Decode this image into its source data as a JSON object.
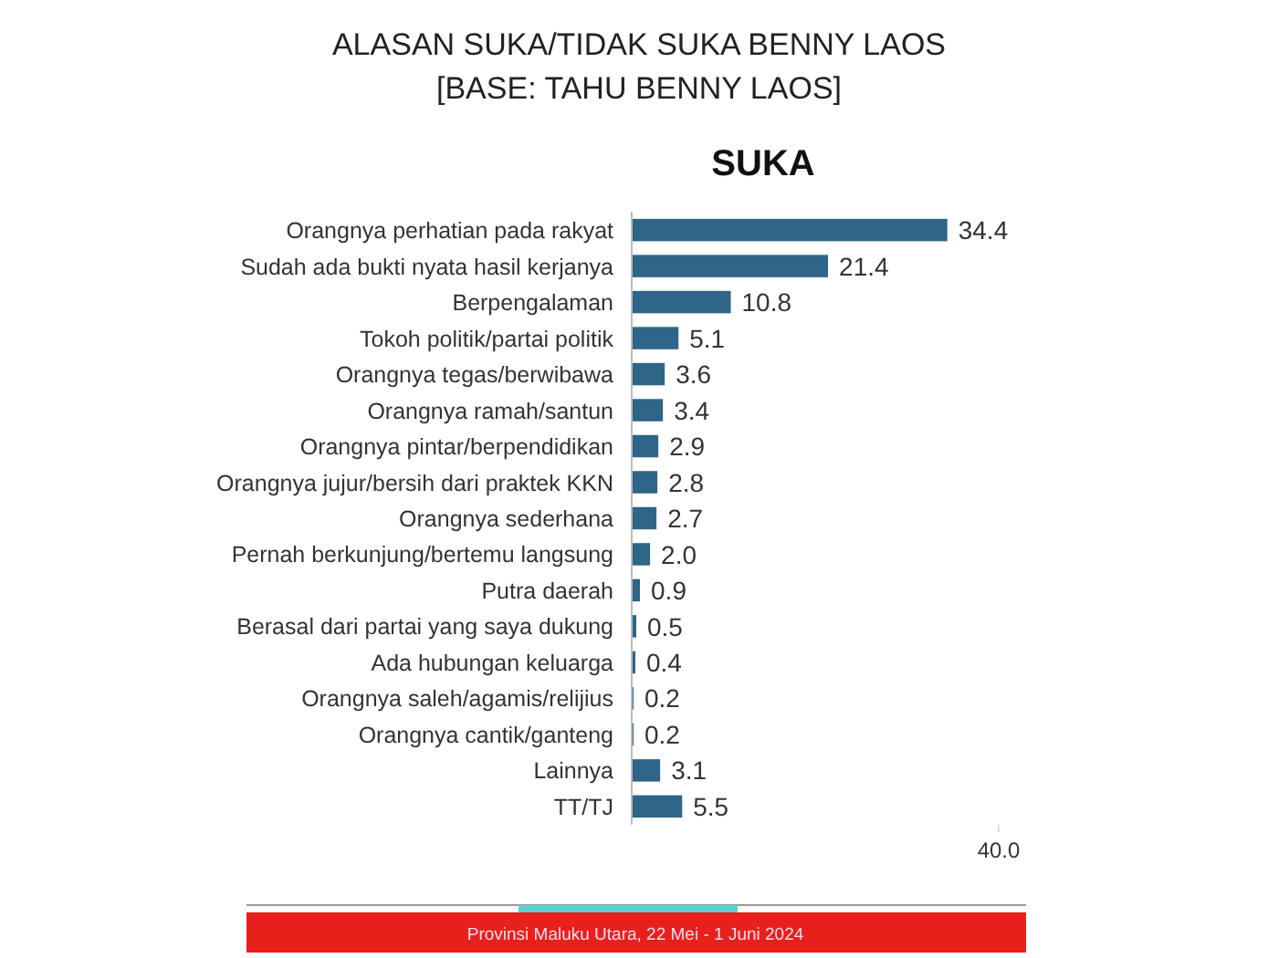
{
  "chart_data": {
    "type": "bar",
    "orientation": "horizontal",
    "title": "ALASAN SUKA/TIDAK SUKA BENNY LAOS\n[BASE: TAHU BENNY LAOS]",
    "subtitle": "SUKA",
    "categories": [
      "Orangnya perhatian pada rakyat",
      "Sudah ada bukti nyata hasil kerjanya",
      "Berpengalaman",
      "Tokoh politik/partai politik",
      "Orangnya tegas/berwibawa",
      "Orangnya ramah/santun",
      "Orangnya pintar/berpendidikan",
      "Orangnya jujur/bersih dari praktek KKN",
      "Orangnya sederhana",
      "Pernah berkunjung/bertemu langsung",
      "Putra daerah",
      "Berasal dari partai yang saya dukung",
      "Ada hubungan keluarga",
      "Orangnya saleh/agamis/relijius",
      "Orangnya cantik/ganteng",
      "Lainnya",
      "TT/TJ"
    ],
    "values": [
      34.4,
      21.4,
      10.8,
      5.1,
      3.6,
      3.4,
      2.9,
      2.8,
      2.7,
      2.0,
      0.9,
      0.5,
      0.4,
      0.2,
      0.2,
      3.1,
      5.5
    ],
    "value_labels": [
      "34.4",
      "21.4",
      "10.8",
      "5.1",
      "3.6",
      "3.4",
      "2.9",
      "2.8",
      "2.7",
      "2.0",
      "0.9",
      "0.5",
      "0.4",
      "0.2",
      "0.2",
      "3.1",
      "5.5"
    ],
    "color": "#2e6589",
    "xlim": [
      0,
      40
    ],
    "xticks": [
      {
        "value": 40,
        "label": "40.0"
      }
    ],
    "annotations": [
      "Provinsi Maluku Utara, 22 Mei - 1 Juni 2024"
    ]
  }
}
